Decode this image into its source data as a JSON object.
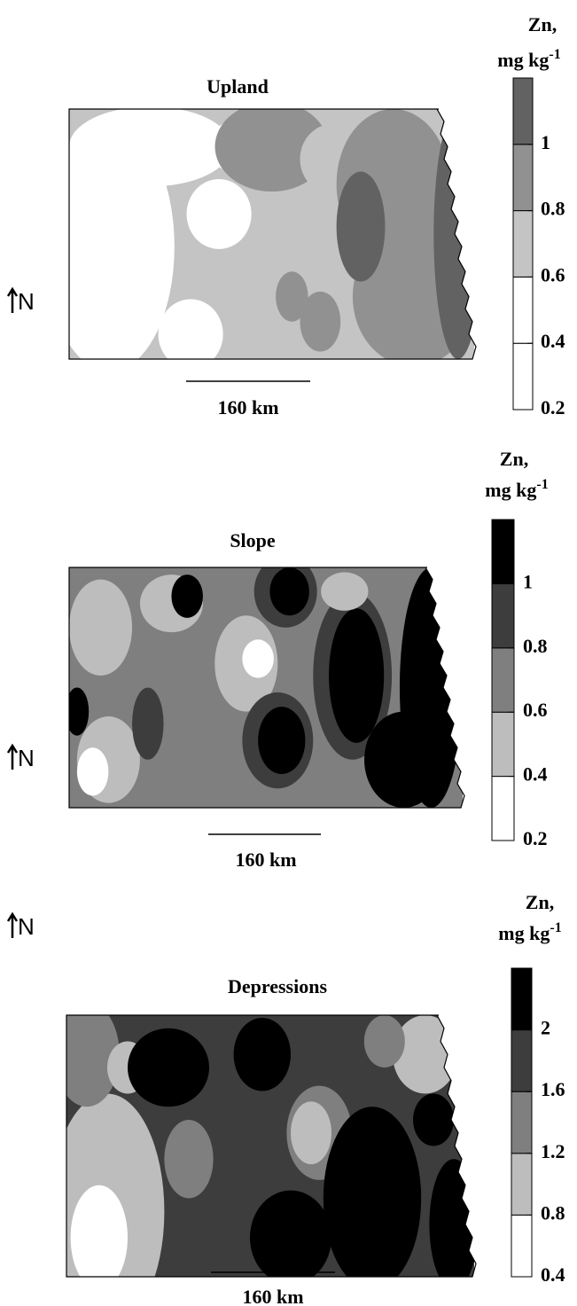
{
  "maps": [
    {
      "title": "Upland",
      "legend_title": "Zn,",
      "legend_unit": "mg kg",
      "legend_unit_sup": "-1",
      "legend_ticks": [
        0.2,
        0.4,
        0.6,
        0.8,
        1
      ],
      "legend_colors": [
        "#ffffff",
        "#ffffff",
        "#c4c4c4",
        "#919191",
        "#626262"
      ],
      "scale_label": "160 km",
      "north_label": "N"
    },
    {
      "title": "Slope",
      "legend_title": "Zn,",
      "legend_unit": "mg kg",
      "legend_unit_sup": "-1",
      "legend_ticks": [
        0.2,
        0.4,
        0.6,
        0.8,
        1
      ],
      "legend_colors": [
        "#ffffff",
        "#bdbdbd",
        "#7f7f7f",
        "#3d3d3d",
        "#000000"
      ],
      "scale_label": "160 km",
      "north_label": "N"
    },
    {
      "title": "Depressions",
      "legend_title": "Zn,",
      "legend_unit": "mg kg",
      "legend_unit_sup": "-1",
      "legend_ticks": [
        0.4,
        0.8,
        1.2,
        1.6,
        2
      ],
      "legend_colors": [
        "#ffffff",
        "#bdbdbd",
        "#7f7f7f",
        "#3d3d3d",
        "#000000"
      ],
      "scale_label": "160 km",
      "north_label": "N"
    }
  ]
}
